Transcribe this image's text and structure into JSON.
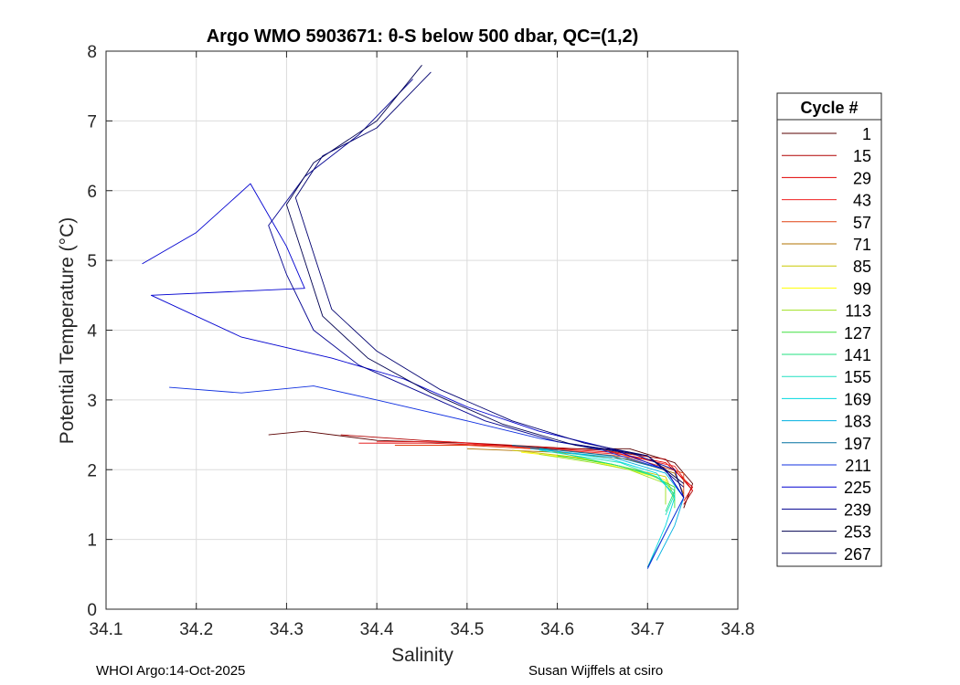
{
  "chart_data": {
    "type": "line",
    "title": "Argo WMO 5903671: θ-S below 500 dbar,  QC=(1,2)",
    "xlabel": "Salinity",
    "ylabel": "Potential Temperature (°C)",
    "xlim": [
      34.1,
      34.8
    ],
    "ylim": [
      0,
      8
    ],
    "xticks": [
      "34.1",
      "34.2",
      "34.3",
      "34.4",
      "34.5",
      "34.6",
      "34.7",
      "34.8"
    ],
    "yticks": [
      "0",
      "1",
      "2",
      "3",
      "4",
      "5",
      "6",
      "7",
      "8"
    ],
    "grid": true,
    "legend_position": "right-outside",
    "legend_title": "Cycle #",
    "series": [
      {
        "name": "1",
        "color": "#5a0000",
        "points": [
          [
            34.28,
            2.5
          ],
          [
            34.32,
            2.55
          ],
          [
            34.4,
            2.42
          ],
          [
            34.5,
            2.38
          ],
          [
            34.6,
            2.3
          ],
          [
            34.68,
            2.3
          ],
          [
            34.73,
            2.1
          ],
          [
            34.75,
            1.8
          ],
          [
            34.74,
            1.45
          ]
        ]
      },
      {
        "name": "15",
        "color": "#b00000",
        "points": [
          [
            34.36,
            2.5
          ],
          [
            34.45,
            2.42
          ],
          [
            34.55,
            2.35
          ],
          [
            34.65,
            2.28
          ],
          [
            34.72,
            2.15
          ],
          [
            34.75,
            1.7
          ],
          [
            34.74,
            1.5
          ]
        ]
      },
      {
        "name": "29",
        "color": "#e00000",
        "points": [
          [
            34.38,
            2.38
          ],
          [
            34.46,
            2.38
          ],
          [
            34.56,
            2.33
          ],
          [
            34.66,
            2.25
          ],
          [
            34.72,
            2.1
          ],
          [
            34.75,
            1.75
          ],
          [
            34.74,
            1.55
          ]
        ]
      },
      {
        "name": "43",
        "color": "#f02020",
        "points": [
          [
            34.4,
            2.4
          ],
          [
            34.48,
            2.4
          ],
          [
            34.58,
            2.3
          ],
          [
            34.67,
            2.22
          ],
          [
            34.73,
            2.05
          ],
          [
            34.75,
            1.7
          ]
        ]
      },
      {
        "name": "57",
        "color": "#e04010",
        "points": [
          [
            34.42,
            2.35
          ],
          [
            34.5,
            2.35
          ],
          [
            34.6,
            2.28
          ],
          [
            34.68,
            2.18
          ],
          [
            34.74,
            1.95
          ],
          [
            34.74,
            1.6
          ]
        ]
      },
      {
        "name": "71",
        "color": "#b07000",
        "points": [
          [
            34.5,
            2.3
          ],
          [
            34.6,
            2.25
          ],
          [
            34.68,
            2.15
          ],
          [
            34.73,
            1.95
          ],
          [
            34.74,
            1.65
          ]
        ]
      },
      {
        "name": "85",
        "color": "#c8c800",
        "points": [
          [
            34.55,
            2.28
          ],
          [
            34.62,
            2.18
          ],
          [
            34.67,
            2.05
          ],
          [
            34.72,
            1.9
          ],
          [
            34.73,
            1.6
          ]
        ]
      },
      {
        "name": "99",
        "color": "#ffff00",
        "points": [
          [
            34.56,
            2.25
          ],
          [
            34.63,
            2.15
          ],
          [
            34.68,
            2.0
          ],
          [
            34.72,
            1.85
          ],
          [
            34.73,
            1.55
          ]
        ]
      },
      {
        "name": "113",
        "color": "#a0e020",
        "points": [
          [
            34.58,
            2.22
          ],
          [
            34.64,
            2.1
          ],
          [
            34.68,
            2.0
          ],
          [
            34.72,
            1.8
          ],
          [
            34.72,
            1.5
          ]
        ]
      },
      {
        "name": "127",
        "color": "#40e040",
        "points": [
          [
            34.6,
            2.2
          ],
          [
            34.66,
            2.08
          ],
          [
            34.7,
            1.95
          ],
          [
            34.73,
            1.75
          ],
          [
            34.73,
            1.45
          ]
        ]
      },
      {
        "name": "141",
        "color": "#20e080",
        "points": [
          [
            34.6,
            2.25
          ],
          [
            34.67,
            2.05
          ],
          [
            34.71,
            1.9
          ],
          [
            34.73,
            1.7
          ],
          [
            34.72,
            1.4
          ]
        ]
      },
      {
        "name": "155",
        "color": "#20e0c0",
        "points": [
          [
            34.58,
            2.28
          ],
          [
            34.67,
            2.1
          ],
          [
            34.71,
            1.9
          ],
          [
            34.73,
            1.65
          ],
          [
            34.72,
            1.35
          ]
        ]
      },
      {
        "name": "169",
        "color": "#00d8e0",
        "points": [
          [
            34.58,
            2.3
          ],
          [
            34.66,
            2.15
          ],
          [
            34.71,
            1.95
          ],
          [
            34.73,
            1.6
          ],
          [
            34.72,
            1.2
          ],
          [
            34.7,
            0.6
          ]
        ]
      },
      {
        "name": "183",
        "color": "#00b0e0",
        "points": [
          [
            34.57,
            2.3
          ],
          [
            34.66,
            2.18
          ],
          [
            34.72,
            1.95
          ],
          [
            34.74,
            1.6
          ],
          [
            34.73,
            1.2
          ],
          [
            34.71,
            0.7
          ]
        ]
      },
      {
        "name": "197",
        "color": "#0070a0",
        "points": [
          [
            34.55,
            2.35
          ],
          [
            34.66,
            2.2
          ],
          [
            34.72,
            2.0
          ],
          [
            34.74,
            1.6
          ],
          [
            34.72,
            1.1
          ],
          [
            34.7,
            0.6
          ]
        ]
      },
      {
        "name": "211",
        "color": "#1030e0",
        "points": [
          [
            34.17,
            3.18
          ],
          [
            34.25,
            3.1
          ],
          [
            34.33,
            3.2
          ],
          [
            34.4,
            3.0
          ],
          [
            34.5,
            2.7
          ],
          [
            34.58,
            2.45
          ],
          [
            34.65,
            2.28
          ],
          [
            34.72,
            2.0
          ],
          [
            34.74,
            1.6
          ],
          [
            34.72,
            1.1
          ],
          [
            34.7,
            0.58
          ]
        ]
      },
      {
        "name": "225",
        "color": "#0000d0",
        "points": [
          [
            34.14,
            4.95
          ],
          [
            34.2,
            5.4
          ],
          [
            34.26,
            6.1
          ],
          [
            34.3,
            5.2
          ],
          [
            34.32,
            4.6
          ],
          [
            34.15,
            4.5
          ],
          [
            34.25,
            3.9
          ],
          [
            34.35,
            3.6
          ],
          [
            34.43,
            3.3
          ],
          [
            34.5,
            2.9
          ],
          [
            34.58,
            2.55
          ],
          [
            34.66,
            2.3
          ],
          [
            34.72,
            2.0
          ],
          [
            34.74,
            1.6
          ]
        ]
      },
      {
        "name": "239",
        "color": "#000090",
        "points": [
          [
            34.44,
            7.6
          ],
          [
            34.38,
            6.8
          ],
          [
            34.32,
            6.2
          ],
          [
            34.28,
            5.5
          ],
          [
            34.3,
            4.8
          ],
          [
            34.33,
            4.0
          ],
          [
            34.38,
            3.5
          ],
          [
            34.45,
            3.1
          ],
          [
            34.52,
            2.7
          ],
          [
            34.6,
            2.4
          ],
          [
            34.68,
            2.25
          ],
          [
            34.73,
            2.0
          ],
          [
            34.74,
            1.6
          ]
        ]
      },
      {
        "name": "253",
        "color": "#000050",
        "points": [
          [
            34.45,
            7.8
          ],
          [
            34.4,
            7.0
          ],
          [
            34.33,
            6.4
          ],
          [
            34.3,
            5.8
          ],
          [
            34.32,
            5.0
          ],
          [
            34.34,
            4.2
          ],
          [
            34.39,
            3.6
          ],
          [
            34.46,
            3.1
          ],
          [
            34.54,
            2.65
          ],
          [
            34.62,
            2.35
          ],
          [
            34.7,
            2.2
          ],
          [
            34.74,
            1.8
          ]
        ]
      },
      {
        "name": "267",
        "color": "#000070",
        "points": [
          [
            34.46,
            7.7
          ],
          [
            34.4,
            6.9
          ],
          [
            34.34,
            6.5
          ],
          [
            34.31,
            5.9
          ],
          [
            34.33,
            5.1
          ],
          [
            34.35,
            4.3
          ],
          [
            34.4,
            3.7
          ],
          [
            34.47,
            3.15
          ],
          [
            34.55,
            2.7
          ],
          [
            34.63,
            2.38
          ],
          [
            34.7,
            2.2
          ],
          [
            34.74,
            1.75
          ]
        ]
      }
    ]
  },
  "footer": {
    "left": "WHOI Argo:14-Oct-2025",
    "right": "Susan Wijffels at csiro"
  }
}
